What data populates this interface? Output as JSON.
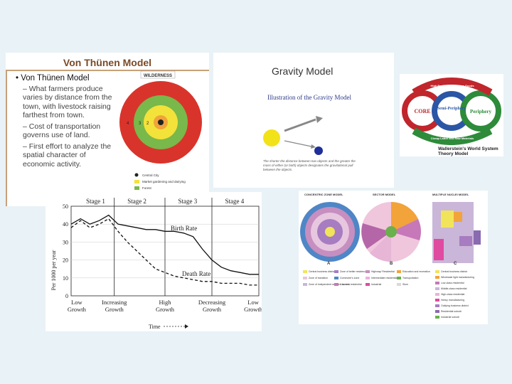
{
  "von_thunen": {
    "title": "Von Thünen Model",
    "bullet": "Von Thünen Model",
    "points": [
      "What farmers produce varies by distance from the town, with livestock raising farthest from town.",
      "Cost of transportation governs use of land.",
      "First effort to analyze the spatial character of economic activity."
    ],
    "ring_top_label": "WILDERNESS",
    "legend": [
      "Central City",
      "Market gardening and dairying",
      "Forest"
    ],
    "ring_numbers": [
      "1",
      "2",
      "3",
      "4"
    ],
    "colors": {
      "outer": "#d9342b",
      "ring3": "#79b84a",
      "ring2": "#f3e23a",
      "center": "#f0a43a"
    }
  },
  "gravity": {
    "title": "Gravity Model",
    "subtitle": "Illustration of the Gravity Model",
    "caption": "The shorter the distance between two objects and the greater the mass of either (or both) objects designates the gravitational pull between the objects."
  },
  "world_system": {
    "labels": [
      "CORE",
      "Semi-Periphery",
      "Periphery",
      "High Profit Consumption Goods",
      "Cheap Labor and Raw Materials"
    ],
    "footer": "Wallerstein's World System Theory Model",
    "colors": {
      "core": "#c0262c",
      "semi": "#2b56a6",
      "periphery": "#2e8b3a"
    }
  },
  "demographic": {
    "stages": [
      "Stage 1",
      "Stage 2",
      "Stage 3",
      "Stage 4"
    ],
    "phases": [
      [
        "Low",
        "Growth"
      ],
      [
        "Increasing",
        "Growth"
      ],
      [
        "High",
        "Growth"
      ],
      [
        "Decreasing",
        "Growth"
      ],
      [
        "Low",
        "Growth"
      ]
    ],
    "ylabel": "Per 1000 per year",
    "xlabel": "Time",
    "birth_label": "Birth Rate",
    "death_label": "Death Rate",
    "yticks": [
      "50",
      "40",
      "30",
      "20",
      "10",
      "0"
    ]
  },
  "chart_data": {
    "type": "line",
    "title": "",
    "xlabel": "Time",
    "ylabel": "Per 1000 per year",
    "ylim": [
      0,
      50
    ],
    "x": [
      0,
      1,
      2,
      3,
      4,
      5,
      6,
      7,
      8,
      9,
      10,
      11,
      12,
      13,
      14,
      15,
      16,
      17,
      18,
      19,
      20
    ],
    "series": [
      {
        "name": "Birth Rate",
        "values": [
          40,
          43,
          40,
          42,
          45,
          40,
          39,
          38,
          37,
          37,
          36,
          36,
          35,
          33,
          26,
          20,
          16,
          14,
          13,
          12,
          12
        ]
      },
      {
        "name": "Death Rate",
        "values": [
          38,
          42,
          38,
          40,
          43,
          36,
          30,
          25,
          20,
          15,
          13,
          11,
          10,
          9,
          8,
          8,
          7,
          7,
          7,
          6,
          6
        ]
      }
    ]
  },
  "urban": {
    "titles": [
      "CONCENTRIC ZONE MODEL",
      "SECTOR MODEL",
      "MULTIPLE NUCLEI MODEL"
    ],
    "letters": [
      "A",
      "B",
      "C"
    ],
    "legend": [
      "Central business district",
      "Zone of better residences",
      "Highway/ Residential",
      "Education and recreation",
      "Zone of transition",
      "Commuter's zone",
      "Intermediate residential",
      "Transportation",
      "Zone of independent workers' homes",
      "Low-rent residential",
      "Industrial",
      "Slum"
    ],
    "legend_c": [
      "Central business district",
      "Wholesale light manufacturing",
      "Low-class residential",
      "Middle-class residential",
      "High-class residential",
      "Heavy manufacturing",
      "Outlying business district",
      "Residential suburb",
      "Industrial suburb"
    ]
  }
}
